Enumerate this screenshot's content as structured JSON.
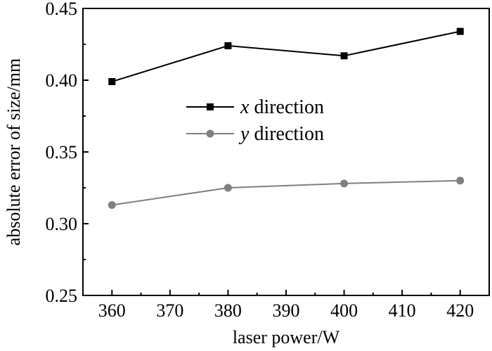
{
  "chart_data": {
    "type": "line",
    "title": "",
    "xlabel": "laser power/W",
    "ylabel": "absolute error of size/mm",
    "x": [
      360,
      380,
      400,
      420
    ],
    "xlim": [
      355,
      425
    ],
    "ylim": [
      0.25,
      0.45
    ],
    "xticks": [
      "360",
      "370",
      "380",
      "390",
      "400",
      "410",
      "420"
    ],
    "yticks": [
      "0.25",
      "0.30",
      "0.35",
      "0.40",
      "0.45"
    ],
    "grid": false,
    "legend_position": "center-left",
    "series": [
      {
        "name_var": "x",
        "name_rest": " direction",
        "values": [
          0.399,
          0.424,
          0.417,
          0.434
        ],
        "color": "#000000",
        "marker": "square"
      },
      {
        "name_var": "y",
        "name_rest": " direction",
        "values": [
          0.313,
          0.325,
          0.328,
          0.33
        ],
        "color": "#808080",
        "marker": "circle"
      }
    ]
  }
}
